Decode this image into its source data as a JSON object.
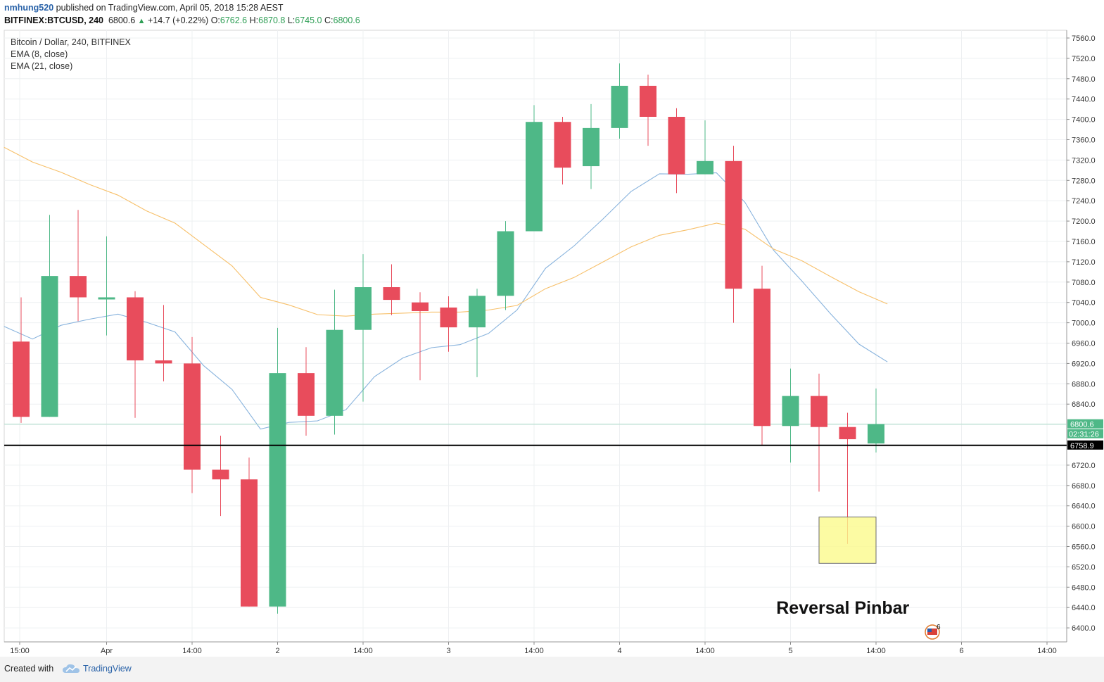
{
  "header": {
    "author": "nmhung520",
    "published_text": "published on TradingView.com, April 05, 2018 15:28 AEST",
    "symbol": "BITFINEX:BTCUSD, 240",
    "last": "6800.6",
    "change_arrow": "▲",
    "change": "+14.7 (+0.22%)",
    "o_label": "O:",
    "o_value": "6762.6",
    "h_label": "H:",
    "h_value": "6870.8",
    "l_label": "L:",
    "l_value": "6745.0",
    "c_label": "C:",
    "c_value": "6800.6"
  },
  "legend": {
    "title": "Bitcoin / Dollar, 240, BITFINEX",
    "ema8": "EMA (8, close)",
    "ema21": "EMA (21, close)"
  },
  "footer": {
    "created_with": "Created with",
    "brand": "TradingView"
  },
  "colors": {
    "up": "#4eb887",
    "down": "#e84c5c",
    "ema8": "#88b3dd",
    "ema21": "#f7c06a",
    "last_line": "#a8dcc6",
    "level": "#000000",
    "box": "#fbfa8c"
  },
  "chart_data": {
    "type": "candlestick",
    "title": "Bitcoin / Dollar, 240, BITFINEX",
    "xlabel": "",
    "ylabel": "",
    "ylim": [
      6360,
      7570
    ],
    "y_ticks": [
      7560,
      7520,
      7480,
      7440,
      7400,
      7360,
      7320,
      7280,
      7240,
      7200,
      7160,
      7120,
      7080,
      7040,
      7000,
      6960,
      6920,
      6880,
      6840,
      6720,
      6680,
      6640,
      6600,
      6560,
      6520,
      6480,
      6440,
      6400
    ],
    "x_ticks": [
      {
        "i": -0.05,
        "label": "15:00"
      },
      {
        "i": 3,
        "label": "Apr"
      },
      {
        "i": 6,
        "label": "14:00"
      },
      {
        "i": 9,
        "label": "2"
      },
      {
        "i": 12,
        "label": "14:00"
      },
      {
        "i": 15,
        "label": "3"
      },
      {
        "i": 18,
        "label": "14:00"
      },
      {
        "i": 21,
        "label": "4"
      },
      {
        "i": 24,
        "label": "14:00"
      },
      {
        "i": 27,
        "label": "5"
      },
      {
        "i": 30,
        "label": "14:00"
      },
      {
        "i": 33,
        "label": "6"
      },
      {
        "i": 36,
        "label": "14:00"
      }
    ],
    "candles": [
      {
        "o": 6963,
        "h": 7050,
        "l": 6803,
        "c": 6815
      },
      {
        "o": 6815,
        "h": 7212,
        "l": 6815,
        "c": 7092
      },
      {
        "o": 7092,
        "h": 7222,
        "l": 7003,
        "c": 7050
      },
      {
        "o": 7050,
        "h": 7170,
        "l": 6975,
        "c": 7050
      },
      {
        "o": 7050,
        "h": 7062,
        "l": 6813,
        "c": 6926
      },
      {
        "o": 6926,
        "h": 7035,
        "l": 6885,
        "c": 6920
      },
      {
        "o": 6920,
        "h": 6972,
        "l": 6665,
        "c": 6711
      },
      {
        "o": 6711,
        "h": 6778,
        "l": 6620,
        "c": 6692
      },
      {
        "o": 6692,
        "h": 6735,
        "l": 6442,
        "c": 6442
      },
      {
        "o": 6442,
        "h": 6990,
        "l": 6428,
        "c": 6901
      },
      {
        "o": 6901,
        "h": 6952,
        "l": 6778,
        "c": 6817
      },
      {
        "o": 6817,
        "h": 7065,
        "l": 6780,
        "c": 6986
      },
      {
        "o": 6986,
        "h": 7135,
        "l": 6845,
        "c": 7070
      },
      {
        "o": 7070,
        "h": 7115,
        "l": 7015,
        "c": 7045
      },
      {
        "o": 7040,
        "h": 7060,
        "l": 6887,
        "c": 7023
      },
      {
        "o": 7030,
        "h": 7052,
        "l": 6943,
        "c": 6991
      },
      {
        "o": 6991,
        "h": 7067,
        "l": 6893,
        "c": 7053
      },
      {
        "o": 7053,
        "h": 7200,
        "l": 7025,
        "c": 7180
      },
      {
        "o": 7180,
        "h": 7428,
        "l": 7180,
        "c": 7395
      },
      {
        "o": 7395,
        "h": 7405,
        "l": 7272,
        "c": 7305
      },
      {
        "o": 7308,
        "h": 7430,
        "l": 7263,
        "c": 7383
      },
      {
        "o": 7383,
        "h": 7510,
        "l": 7362,
        "c": 7466
      },
      {
        "o": 7466,
        "h": 7488,
        "l": 7348,
        "c": 7405
      },
      {
        "o": 7405,
        "h": 7422,
        "l": 7255,
        "c": 7292
      },
      {
        "o": 7292,
        "h": 7398,
        "l": 7292,
        "c": 7318
      },
      {
        "o": 7318,
        "h": 7348,
        "l": 7000,
        "c": 7067
      },
      {
        "o": 7067,
        "h": 7112,
        "l": 6760,
        "c": 6797
      },
      {
        "o": 6797,
        "h": 6910,
        "l": 6725,
        "c": 6856
      },
      {
        "o": 6856,
        "h": 6900,
        "l": 6668,
        "c": 6795
      },
      {
        "o": 6795,
        "h": 6823,
        "l": 6565,
        "c": 6771
      },
      {
        "o": 6762.6,
        "h": 6870.8,
        "l": 6745.0,
        "c": 6800.6
      }
    ],
    "series": [
      {
        "name": "EMA (8, close)",
        "start": -0.6,
        "values": [
          6993,
          6968,
          6995,
          7007,
          7017,
          7001,
          6982,
          6916,
          6869,
          6791,
          6804,
          6807,
          6829,
          6894,
          6931,
          6951,
          6957,
          6979,
          7025,
          7107,
          7151,
          7203,
          7258,
          7293,
          7292,
          7295,
          7237,
          7143,
          7082,
          7018,
          6958,
          6923
        ]
      },
      {
        "name": "EMA (21, close)",
        "start": -0.6,
        "values": [
          7345,
          7316,
          7296,
          7272,
          7251,
          7220,
          7196,
          7154,
          7112,
          7050,
          7035,
          7016,
          7013,
          7017,
          7019,
          7021,
          7021,
          7025,
          7034,
          7067,
          7089,
          7119,
          7149,
          7172,
          7183,
          7196,
          7184,
          7145,
          7122,
          7091,
          7061,
          7037
        ]
      }
    ],
    "last_price": 6800.6,
    "last_price_label": "6800.6",
    "countdown_label": "02:31:26",
    "level": 6758.9,
    "level_label": "6758.9",
    "box": {
      "i_from": 28,
      "i_to": 30,
      "y_from": 6527,
      "y_to": 6618
    },
    "annotation": "Reversal Pinbar",
    "watermark_badge": "6"
  }
}
